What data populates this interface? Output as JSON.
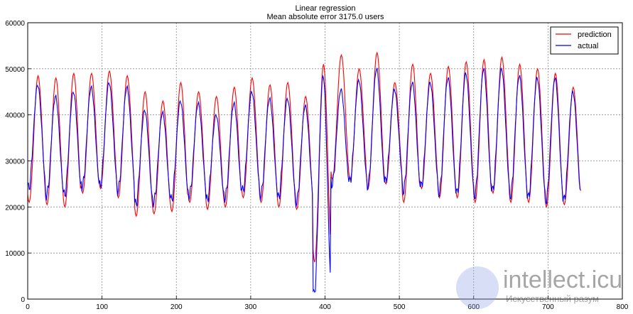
{
  "chart_data": {
    "type": "line",
    "title": "Linear regression",
    "subtitle": "Mean absolute error 3175.0 users",
    "xlabel": "",
    "ylabel": "",
    "xlim": [
      0,
      800
    ],
    "ylim": [
      0,
      60000
    ],
    "xticks": [
      0,
      100,
      200,
      300,
      400,
      500,
      600,
      700,
      800
    ],
    "yticks": [
      0,
      10000,
      20000,
      30000,
      40000,
      50000,
      60000
    ],
    "grid": true,
    "grid_style": "dotted",
    "legend": "top-right",
    "series": [
      {
        "name": "prediction",
        "color": "#ff0000",
        "period": 24,
        "peaks": [
          48500,
          48000,
          49000,
          49000,
          49500,
          48500,
          45000,
          43000,
          47000,
          45000,
          44000,
          46000,
          48000,
          46500,
          47000,
          44000,
          51000,
          53000,
          50000,
          53500,
          47000,
          51000,
          49000,
          50500,
          51500,
          52000,
          52500,
          51000,
          50000,
          49000,
          46000,
          46000
        ],
        "troughs": [
          21000,
          20500,
          20000,
          23000,
          24000,
          22000,
          18000,
          18500,
          19000,
          21000,
          19500,
          20000,
          22000,
          21000,
          20000,
          19500,
          8000,
          26000,
          26000,
          24000,
          25000,
          21000,
          24000,
          22000,
          22000,
          21000,
          23000,
          21000,
          21000,
          20000,
          20500,
          22000
        ],
        "x_end": 744
      },
      {
        "name": "actual",
        "color": "#0000ff",
        "period": 24,
        "peaks": [
          46500,
          44000,
          45000,
          46000,
          47000,
          46000,
          41000,
          40500,
          43000,
          42500,
          40000,
          42500,
          45000,
          43500,
          43500,
          42000,
          48500,
          45500,
          47500,
          50000,
          45500,
          47000,
          47000,
          48000,
          49000,
          50000,
          50000,
          48500,
          48000,
          48000,
          45000,
          41000
        ],
        "troughs": [
          24000,
          22500,
          22500,
          24500,
          24500,
          23500,
          20500,
          21000,
          21500,
          22500,
          21500,
          22000,
          23500,
          22500,
          22000,
          21000,
          800,
          25000,
          25500,
          24500,
          25500,
          23500,
          24500,
          23000,
          23000,
          22500,
          23500,
          22500,
          22000,
          21500,
          21500,
          22000
        ],
        "x_end": 744
      }
    ]
  },
  "watermark": {
    "brand": "intellect.icu",
    "tagline": "Искусственный разум"
  }
}
